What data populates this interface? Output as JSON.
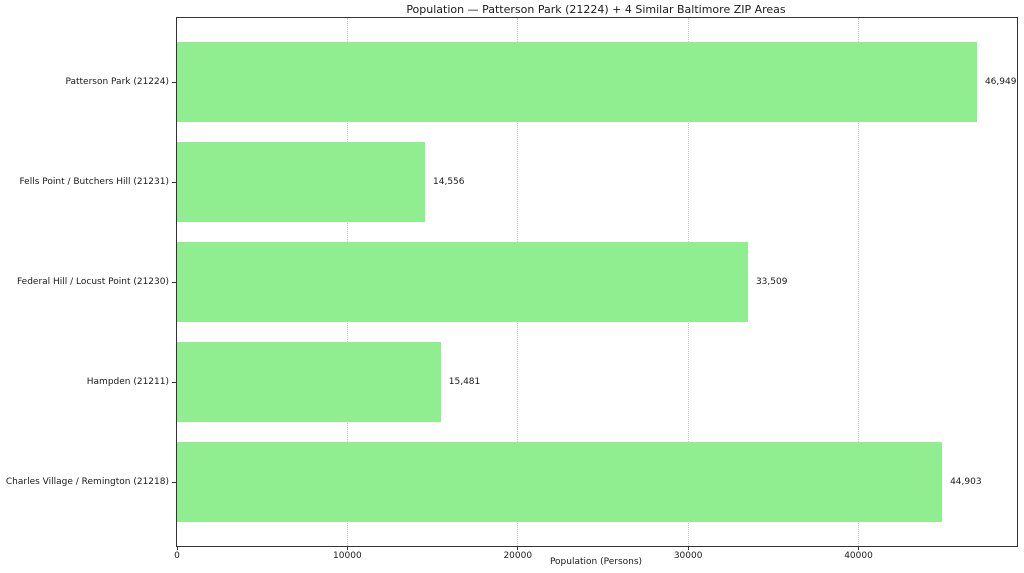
{
  "chart_data": {
    "type": "bar",
    "orientation": "horizontal",
    "title": "Population — Patterson Park (21224) + 4 Similar Baltimore ZIP Areas",
    "xlabel": "Population (Persons)",
    "categories": [
      "Patterson Park (21224)",
      "Fells Point / Butchers Hill (21231)",
      "Federal Hill / Locust Point (21230)",
      "Hampden (21211)",
      "Charles Village / Remington (21218)"
    ],
    "values": [
      46949,
      14556,
      33509,
      15481,
      44903
    ],
    "value_labels": [
      "46,949",
      "14,556",
      "33,509",
      "15,481",
      "44,903"
    ],
    "xlim": [
      0,
      49300
    ],
    "xticks": [
      0,
      10000,
      20000,
      30000,
      40000
    ],
    "xtick_labels": [
      "0",
      "10000",
      "20000",
      "30000",
      "40000"
    ],
    "grid": "vertical-dotted",
    "legend_position": "none",
    "bar_color": "#90ee90",
    "text_color": "#1a1a1a",
    "gridline_color": "#c6c6c6"
  }
}
